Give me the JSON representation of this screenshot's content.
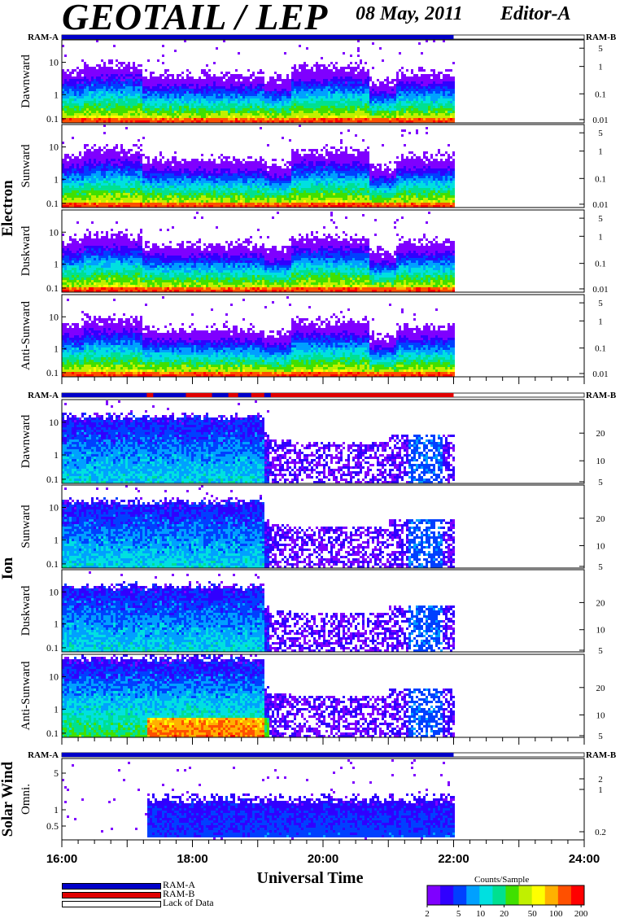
{
  "header": {
    "title": "GEOTAIL / LEP",
    "date": "08 May, 2011",
    "editor": "Editor-A"
  },
  "axes": {
    "x_title": "Universal Time",
    "x_ticks": [
      "16:00",
      "18:00",
      "20:00",
      "22:00",
      "24:00"
    ],
    "x_range_hours": [
      16,
      24
    ],
    "data_end_hour": 22.0
  },
  "groups": [
    {
      "name": "Electron",
      "ram_left": "RAM-A",
      "ram_right": "RAM-B",
      "mode_bar": "A"
    },
    {
      "name": "Ion",
      "ram_left": "RAM-A",
      "ram_right": "RAM-B",
      "mode_bar": "mixed"
    },
    {
      "name": "Solar Wind",
      "ram_left": "RAM-A",
      "ram_right": "RAM-B",
      "mode_bar": "A"
    }
  ],
  "chart_data": [
    {
      "type": "heatmap",
      "group": "Electron",
      "panel": "Dawnward",
      "y_ticks": [
        "10",
        "1",
        "0.1"
      ],
      "right_ticks": [
        "5",
        "1",
        "0.1",
        "0.01"
      ]
    },
    {
      "type": "heatmap",
      "group": "Electron",
      "panel": "Sunward",
      "y_ticks": [
        "10",
        "1",
        "0.1"
      ],
      "right_ticks": [
        "5",
        "1",
        "0.1",
        "0.01"
      ]
    },
    {
      "type": "heatmap",
      "group": "Electron",
      "panel": "Duskward",
      "y_ticks": [
        "10",
        "1",
        "0.1"
      ],
      "right_ticks": [
        "5",
        "1",
        "0.1",
        "0.01"
      ]
    },
    {
      "type": "heatmap",
      "group": "Electron",
      "panel": "Anti-Sunward",
      "y_ticks": [
        "10",
        "1",
        "0.1"
      ],
      "right_ticks": [
        "5",
        "1",
        "0.1",
        "0.01"
      ]
    },
    {
      "type": "heatmap",
      "group": "Ion",
      "panel": "Dawnward",
      "y_ticks": [
        "10",
        "1",
        "0.1"
      ],
      "right_ticks": [
        "20",
        "10",
        "5"
      ]
    },
    {
      "type": "heatmap",
      "group": "Ion",
      "panel": "Sunward",
      "y_ticks": [
        "10",
        "1",
        "0.1"
      ],
      "right_ticks": [
        "20",
        "10",
        "5"
      ]
    },
    {
      "type": "heatmap",
      "group": "Ion",
      "panel": "Duskward",
      "y_ticks": [
        "10",
        "1",
        "0.1"
      ],
      "right_ticks": [
        "20",
        "10",
        "5"
      ]
    },
    {
      "type": "heatmap",
      "group": "Ion",
      "panel": "Anti-Sunward",
      "y_ticks": [
        "10",
        "1",
        "0.1"
      ],
      "right_ticks": [
        "20",
        "10",
        "5"
      ]
    },
    {
      "type": "heatmap",
      "group": "Solar Wind",
      "panel": "Omni.",
      "y_ticks": [
        "5",
        "1",
        "0.5"
      ],
      "right_ticks": [
        "2",
        "1",
        "0.2"
      ]
    }
  ],
  "colorbar": {
    "title": "Counts/Sample",
    "ticks": [
      "2",
      "5",
      "10",
      "20",
      "50",
      "100",
      "200"
    ],
    "colors": [
      "#7f00ff",
      "#3000ff",
      "#0040ff",
      "#00a0ff",
      "#00e0e0",
      "#00e090",
      "#40e000",
      "#c0f000",
      "#ffff00",
      "#ffb000",
      "#ff5000",
      "#ff0000"
    ]
  },
  "legend": [
    {
      "label": "RAM-A",
      "color": "#0000c8"
    },
    {
      "label": "RAM-B",
      "color": "#e00000"
    },
    {
      "label": "Lack of Data",
      "color": "#ffffff"
    }
  ]
}
